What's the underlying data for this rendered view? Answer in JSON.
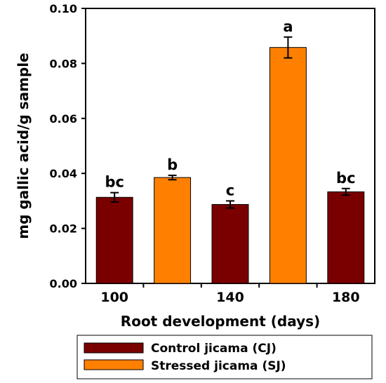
{
  "chart_data": {
    "type": "bar",
    "title": "",
    "xlabel": "Root development (days)",
    "ylabel": "mg gallic acid/g sample",
    "ylim": [
      0,
      0.1
    ],
    "yticks": [
      "0.00",
      "0.02",
      "0.04",
      "0.06",
      "0.08",
      "0.10"
    ],
    "xticks": [
      "100",
      "140",
      "180"
    ],
    "grid": false,
    "legend_position": "bottom",
    "series": [
      {
        "name": "Control jicama (CJ)",
        "color": "#7a0000"
      },
      {
        "name": "Stressed jicama (SJ)",
        "color": "#ff8000"
      }
    ],
    "bars": [
      {
        "series": "Control jicama (CJ)",
        "value": 0.0313,
        "error": 0.0017,
        "letter": "bc"
      },
      {
        "series": "Stressed jicama (SJ)",
        "value": 0.0385,
        "error": 0.0008,
        "letter": "b"
      },
      {
        "series": "Control jicama (CJ)",
        "value": 0.0287,
        "error": 0.0013,
        "letter": "c"
      },
      {
        "series": "Stressed jicama (SJ)",
        "value": 0.0858,
        "error": 0.0038,
        "letter": "a"
      },
      {
        "series": "Control jicama (CJ)",
        "value": 0.0333,
        "error": 0.0012,
        "letter": "bc"
      }
    ]
  }
}
